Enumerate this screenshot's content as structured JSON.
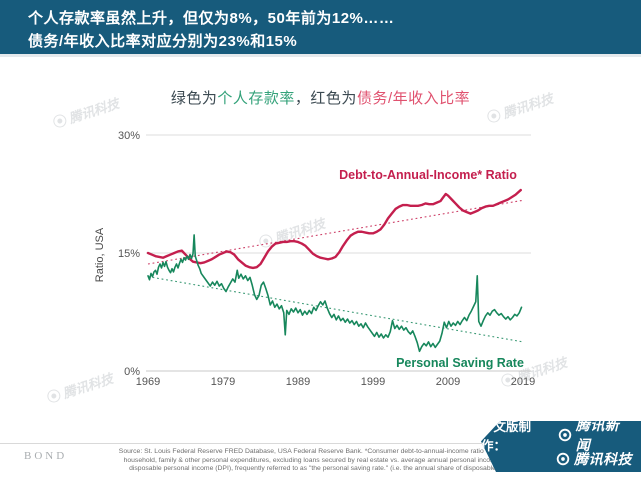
{
  "colors": {
    "header_bg": "#175b7c",
    "text_dark": "#3c4a52",
    "subtitle_green": "#34a27a",
    "subtitle_red": "#e0526f",
    "red_line": "#c41f4e",
    "green_line": "#17875c"
  },
  "header": {
    "title_line1": "个人存款率虽然上升，但仅为8%，50年前为12%……",
    "title_line2": "债务/年收入比率对应分别为23%和15%"
  },
  "subtitle": {
    "prefix": "绿色为",
    "green_term": "个人存款率",
    "middle": "，红色为",
    "red_term": "债务/年收入比率"
  },
  "watermark": {
    "label": "腾讯科技"
  },
  "chart_data": {
    "type": "line",
    "title": "",
    "xlabel": "",
    "ylabel": "Ratio, USA",
    "x_ticks": [
      "1969",
      "1979",
      "1989",
      "1999",
      "2009",
      "2019"
    ],
    "y_ticks": [
      {
        "value": 30,
        "label": "30%"
      },
      {
        "value": 15,
        "label": "15%"
      },
      {
        "value": 0,
        "label": "0%"
      }
    ],
    "x_range": [
      1968.5,
      2019.5
    ],
    "y_range": [
      0,
      32
    ],
    "grid": "horizontal",
    "legend_position": "inline-labels",
    "series": [
      {
        "name": "Debt-to-Annual-Income* Ratio",
        "color": "#c41f4e",
        "trend": [
          [
            1969,
            13.6
          ],
          [
            2019,
            21.7
          ]
        ],
        "points": [
          [
            1969,
            15.0
          ],
          [
            1969.5,
            14.8
          ],
          [
            1970,
            14.6
          ],
          [
            1970.5,
            14.5
          ],
          [
            1971,
            14.4
          ],
          [
            1971.5,
            14.6
          ],
          [
            1972,
            14.8
          ],
          [
            1972.5,
            15.0
          ],
          [
            1973,
            15.2
          ],
          [
            1973.5,
            15.3
          ],
          [
            1974,
            14.8
          ],
          [
            1974.5,
            14.3
          ],
          [
            1975,
            13.9
          ],
          [
            1975.5,
            13.8
          ],
          [
            1976,
            13.7
          ],
          [
            1976.5,
            13.8
          ],
          [
            1977,
            14.0
          ],
          [
            1977.5,
            14.2
          ],
          [
            1978,
            14.5
          ],
          [
            1978.5,
            14.8
          ],
          [
            1979,
            15.0
          ],
          [
            1979.5,
            15.2
          ],
          [
            1980,
            15.1
          ],
          [
            1980.5,
            14.8
          ],
          [
            1981,
            14.2
          ],
          [
            1981.5,
            13.8
          ],
          [
            1982,
            13.4
          ],
          [
            1982.5,
            13.2
          ],
          [
            1983,
            13.1
          ],
          [
            1983.5,
            13.2
          ],
          [
            1984,
            13.6
          ],
          [
            1984.5,
            14.4
          ],
          [
            1985,
            15.2
          ],
          [
            1985.5,
            15.8
          ],
          [
            1986,
            16.2
          ],
          [
            1986.5,
            16.3
          ],
          [
            1987,
            16.4
          ],
          [
            1987.5,
            16.4
          ],
          [
            1988,
            16.5
          ],
          [
            1988.5,
            16.5
          ],
          [
            1989,
            16.4
          ],
          [
            1989.5,
            16.2
          ],
          [
            1990,
            15.9
          ],
          [
            1990.5,
            15.4
          ],
          [
            1991,
            14.9
          ],
          [
            1991.5,
            14.6
          ],
          [
            1992,
            14.4
          ],
          [
            1992.5,
            14.3
          ],
          [
            1993,
            14.2
          ],
          [
            1993.5,
            14.3
          ],
          [
            1994,
            14.5
          ],
          [
            1994.5,
            15.1
          ],
          [
            1995,
            15.9
          ],
          [
            1995.5,
            16.6
          ],
          [
            1996,
            17.2
          ],
          [
            1996.5,
            17.5
          ],
          [
            1997,
            17.7
          ],
          [
            1997.5,
            17.7
          ],
          [
            1998,
            17.6
          ],
          [
            1998.5,
            17.5
          ],
          [
            1999,
            17.5
          ],
          [
            1999.5,
            17.7
          ],
          [
            2000,
            18.0
          ],
          [
            2000.5,
            18.6
          ],
          [
            2001,
            19.4
          ],
          [
            2001.5,
            20.0
          ],
          [
            2002,
            20.6
          ],
          [
            2002.5,
            20.9
          ],
          [
            2003,
            21.1
          ],
          [
            2003.5,
            21.1
          ],
          [
            2004,
            21.0
          ],
          [
            2004.5,
            21.0
          ],
          [
            2005,
            21.0
          ],
          [
            2005.5,
            21.1
          ],
          [
            2006,
            21.3
          ],
          [
            2006.5,
            21.2
          ],
          [
            2007,
            21.2
          ],
          [
            2007.5,
            21.4
          ],
          [
            2008,
            21.6
          ],
          [
            2008.3,
            22.0
          ],
          [
            2008.7,
            22.5
          ],
          [
            2009,
            22.3
          ],
          [
            2009.5,
            21.8
          ],
          [
            2010,
            21.3
          ],
          [
            2010.5,
            20.8
          ],
          [
            2011,
            20.4
          ],
          [
            2011.5,
            20.2
          ],
          [
            2012,
            20.0
          ],
          [
            2012.5,
            20.2
          ],
          [
            2013,
            20.4
          ],
          [
            2013.5,
            20.7
          ],
          [
            2014,
            20.9
          ],
          [
            2014.5,
            21.0
          ],
          [
            2015,
            21.0
          ],
          [
            2015.5,
            21.2
          ],
          [
            2016,
            21.4
          ],
          [
            2016.5,
            21.6
          ],
          [
            2017,
            21.8
          ],
          [
            2017.5,
            22.1
          ],
          [
            2018,
            22.4
          ],
          [
            2018.7,
            23.0
          ]
        ]
      },
      {
        "name": "Personal Saving Rate",
        "color": "#17875c",
        "trend": [
          [
            1969,
            12.0
          ],
          [
            2019,
            3.7
          ]
        ],
        "points": [
          [
            1969.0,
            12.1
          ],
          [
            1969.2,
            11.6
          ],
          [
            1969.4,
            12.4
          ],
          [
            1969.6,
            12.0
          ],
          [
            1969.8,
            12.6
          ],
          [
            1970.0,
            12.8
          ],
          [
            1970.2,
            12.3
          ],
          [
            1970.4,
            13.2
          ],
          [
            1970.6,
            13.6
          ],
          [
            1970.8,
            13.1
          ],
          [
            1971.0,
            13.8
          ],
          [
            1971.2,
            13.3
          ],
          [
            1971.4,
            13.9
          ],
          [
            1971.6,
            13.2
          ],
          [
            1971.8,
            12.8
          ],
          [
            1972.0,
            12.5
          ],
          [
            1972.2,
            13.0
          ],
          [
            1972.4,
            12.6
          ],
          [
            1972.6,
            13.2
          ],
          [
            1972.8,
            13.6
          ],
          [
            1973.0,
            13.1
          ],
          [
            1973.2,
            13.7
          ],
          [
            1973.4,
            14.2
          ],
          [
            1973.6,
            13.8
          ],
          [
            1973.8,
            14.4
          ],
          [
            1974.0,
            14.1
          ],
          [
            1974.2,
            14.6
          ],
          [
            1974.4,
            14.2
          ],
          [
            1974.6,
            14.8
          ],
          [
            1974.8,
            14.3
          ],
          [
            1975.0,
            14.9
          ],
          [
            1975.15,
            17.3
          ],
          [
            1975.3,
            14.6
          ],
          [
            1975.5,
            14.0
          ],
          [
            1975.7,
            13.4
          ],
          [
            1975.9,
            13.0
          ],
          [
            1976.1,
            12.4
          ],
          [
            1976.4,
            12.0
          ],
          [
            1976.7,
            11.6
          ],
          [
            1977.0,
            11.2
          ],
          [
            1977.3,
            10.8
          ],
          [
            1977.6,
            11.3
          ],
          [
            1977.9,
            10.9
          ],
          [
            1978.2,
            11.4
          ],
          [
            1978.5,
            10.8
          ],
          [
            1978.8,
            11.1
          ],
          [
            1979.1,
            10.5
          ],
          [
            1979.4,
            10.1
          ],
          [
            1979.7,
            10.7
          ],
          [
            1980.0,
            11.2
          ],
          [
            1980.3,
            11.7
          ],
          [
            1980.6,
            11.3
          ],
          [
            1980.9,
            12.8
          ],
          [
            1981.1,
            11.8
          ],
          [
            1981.4,
            12.3
          ],
          [
            1981.7,
            11.7
          ],
          [
            1982.0,
            12.1
          ],
          [
            1982.3,
            11.5
          ],
          [
            1982.6,
            11.9
          ],
          [
            1982.9,
            10.9
          ],
          [
            1983.2,
            9.7
          ],
          [
            1983.5,
            9.1
          ],
          [
            1983.8,
            9.6
          ],
          [
            1984.1,
            10.9
          ],
          [
            1984.4,
            11.3
          ],
          [
            1984.7,
            10.5
          ],
          [
            1985.0,
            9.6
          ],
          [
            1985.3,
            8.4
          ],
          [
            1985.6,
            8.9
          ],
          [
            1985.9,
            8.1
          ],
          [
            1986.2,
            8.5
          ],
          [
            1986.5,
            7.9
          ],
          [
            1986.8,
            8.3
          ],
          [
            1987.1,
            7.4
          ],
          [
            1987.3,
            4.6
          ],
          [
            1987.5,
            7.7
          ],
          [
            1987.8,
            7.2
          ],
          [
            1988.1,
            7.9
          ],
          [
            1988.4,
            7.5
          ],
          [
            1988.7,
            8.0
          ],
          [
            1989.0,
            7.4
          ],
          [
            1989.3,
            7.8
          ],
          [
            1989.6,
            7.1
          ],
          [
            1989.9,
            7.6
          ],
          [
            1990.2,
            7.2
          ],
          [
            1990.5,
            7.7
          ],
          [
            1990.8,
            7.3
          ],
          [
            1991.1,
            8.1
          ],
          [
            1991.4,
            7.7
          ],
          [
            1991.7,
            8.3
          ],
          [
            1992.0,
            8.8
          ],
          [
            1992.3,
            8.4
          ],
          [
            1992.6,
            8.9
          ],
          [
            1992.9,
            8.0
          ],
          [
            1993.2,
            7.3
          ],
          [
            1993.5,
            6.8
          ],
          [
            1993.8,
            7.2
          ],
          [
            1994.1,
            6.5
          ],
          [
            1994.4,
            7.0
          ],
          [
            1994.7,
            6.4
          ],
          [
            1995.0,
            6.7
          ],
          [
            1995.3,
            6.2
          ],
          [
            1995.6,
            6.6
          ],
          [
            1995.9,
            6.1
          ],
          [
            1996.2,
            6.4
          ],
          [
            1996.5,
            5.9
          ],
          [
            1996.8,
            6.3
          ],
          [
            1997.1,
            5.7
          ],
          [
            1997.4,
            6.0
          ],
          [
            1997.7,
            5.5
          ],
          [
            1998.0,
            6.1
          ],
          [
            1998.3,
            5.6
          ],
          [
            1998.6,
            5.2
          ],
          [
            1998.9,
            4.8
          ],
          [
            1999.2,
            4.4
          ],
          [
            1999.5,
            4.9
          ],
          [
            1999.8,
            4.3
          ],
          [
            2000.1,
            4.7
          ],
          [
            2000.4,
            4.2
          ],
          [
            2000.7,
            4.6
          ],
          [
            2001.0,
            4.3
          ],
          [
            2001.3,
            5.0
          ],
          [
            2001.6,
            6.4
          ],
          [
            2001.9,
            5.4
          ],
          [
            2002.2,
            5.8
          ],
          [
            2002.5,
            5.3
          ],
          [
            2002.8,
            5.7
          ],
          [
            2003.1,
            5.2
          ],
          [
            2003.4,
            5.5
          ],
          [
            2003.7,
            5.0
          ],
          [
            2004.0,
            4.7
          ],
          [
            2004.3,
            5.1
          ],
          [
            2004.6,
            4.4
          ],
          [
            2004.9,
            3.6
          ],
          [
            2005.2,
            2.5
          ],
          [
            2005.5,
            3.1
          ],
          [
            2005.8,
            3.5
          ],
          [
            2006.1,
            3.2
          ],
          [
            2006.4,
            3.7
          ],
          [
            2006.7,
            3.1
          ],
          [
            2007.0,
            3.5
          ],
          [
            2007.3,
            3.0
          ],
          [
            2007.6,
            3.4
          ],
          [
            2007.9,
            3.8
          ],
          [
            2008.2,
            4.8
          ],
          [
            2008.5,
            6.2
          ],
          [
            2008.8,
            5.5
          ],
          [
            2009.1,
            6.3
          ],
          [
            2009.4,
            5.7
          ],
          [
            2009.7,
            6.1
          ],
          [
            2010.0,
            5.8
          ],
          [
            2010.3,
            6.3
          ],
          [
            2010.6,
            5.9
          ],
          [
            2010.9,
            6.4
          ],
          [
            2011.2,
            6.8
          ],
          [
            2011.5,
            6.4
          ],
          [
            2011.8,
            7.1
          ],
          [
            2012.1,
            7.6
          ],
          [
            2012.4,
            8.2
          ],
          [
            2012.7,
            8.8
          ],
          [
            2012.9,
            12.1
          ],
          [
            2013.1,
            6.3
          ],
          [
            2013.4,
            5.7
          ],
          [
            2013.7,
            6.4
          ],
          [
            2014.0,
            7.0
          ],
          [
            2014.3,
            7.4
          ],
          [
            2014.6,
            7.1
          ],
          [
            2014.9,
            7.6
          ],
          [
            2015.2,
            7.8
          ],
          [
            2015.5,
            7.4
          ],
          [
            2015.8,
            7.1
          ],
          [
            2016.1,
            7.3
          ],
          [
            2016.4,
            6.9
          ],
          [
            2016.7,
            6.6
          ],
          [
            2017.0,
            6.9
          ],
          [
            2017.3,
            6.5
          ],
          [
            2017.6,
            6.8
          ],
          [
            2017.9,
            7.2
          ],
          [
            2018.2,
            7.0
          ],
          [
            2018.5,
            7.4
          ],
          [
            2018.8,
            8.1
          ]
        ]
      }
    ]
  },
  "footer": {
    "brand": "BOND",
    "source_lines": [
      "Source: St. Louis Federal Reserve FRED Database, USA Federal Reserve Bank. *Consumer debt-to-annual-income ratio = outst",
      "household, family & other personal expenditures, excluding loans secured by real estate vs. average annual personal income.",
      "disposable personal income (DPI), frequently referred to as \"the personal saving rate.\" (i.e. the annual share of disposable"
    ],
    "ribbon": {
      "prefix": "中文版制作：",
      "line1": "腾讯新闻",
      "line2": "腾讯科技"
    }
  }
}
